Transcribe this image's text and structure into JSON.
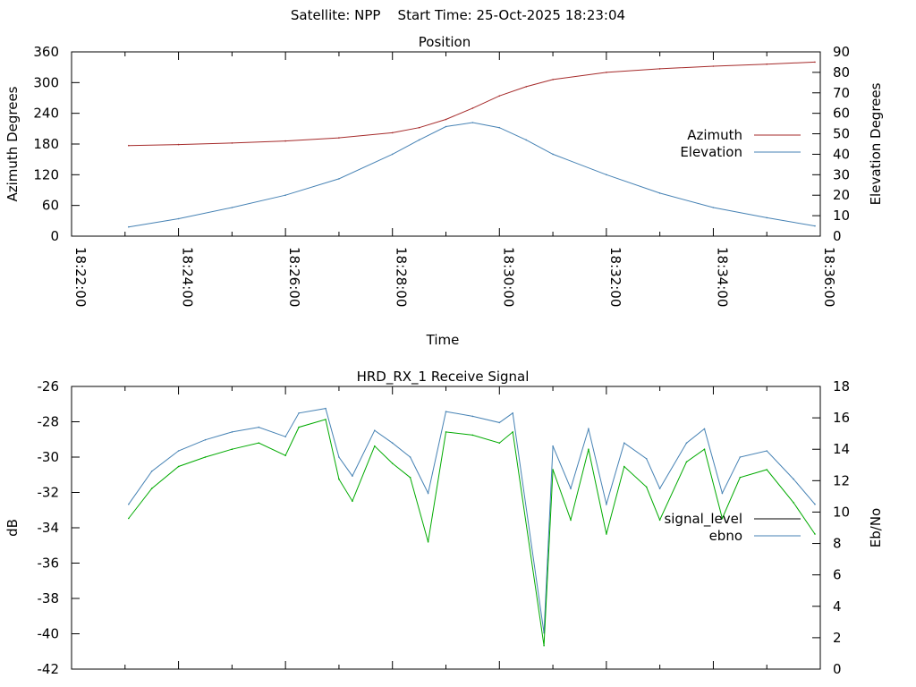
{
  "header": {
    "text": "Satellite: NPP    Start Time: 25-Oct-2025 18:23:04"
  },
  "chart_data": [
    {
      "type": "line",
      "title": "Position",
      "xlabel": "Time",
      "ylabel": "Azimuth Degrees",
      "y2label": "Elevation Degrees",
      "xlim": [
        "18:22:00",
        "18:36:00"
      ],
      "ylim": [
        0,
        360
      ],
      "y2lim": [
        0,
        90
      ],
      "x_ticks": [
        "18:22:00",
        "18:24:00",
        "18:26:00",
        "18:28:00",
        "18:30:00",
        "18:32:00",
        "18:34:00",
        "18:36:00"
      ],
      "y_ticks": [
        "0",
        "60",
        "120",
        "180",
        "240",
        "300",
        "360"
      ],
      "y2_ticks": [
        "0",
        "10",
        "20",
        "30",
        "40",
        "50",
        "60",
        "70",
        "80",
        "90"
      ],
      "legend_position": "right",
      "grid": false,
      "series": [
        {
          "name": "Azimuth",
          "axis": "y",
          "color": "#a52a2a",
          "x": [
            "18:23:04",
            "18:24:00",
            "18:25:00",
            "18:26:00",
            "18:27:00",
            "18:28:00",
            "18:28:30",
            "18:29:00",
            "18:29:30",
            "18:30:00",
            "18:30:30",
            "18:31:00",
            "18:32:00",
            "18:33:00",
            "18:34:00",
            "18:35:00",
            "18:35:54"
          ],
          "values": [
            177,
            179,
            182,
            186,
            192,
            202,
            212,
            228,
            250,
            274,
            292,
            306,
            320,
            327,
            332,
            336,
            340
          ]
        },
        {
          "name": "Elevation",
          "axis": "y2",
          "color": "#4682b4",
          "x": [
            "18:23:04",
            "18:24:00",
            "18:25:00",
            "18:26:00",
            "18:27:00",
            "18:28:00",
            "18:28:30",
            "18:29:00",
            "18:29:30",
            "18:30:00",
            "18:30:30",
            "18:31:00",
            "18:32:00",
            "18:33:00",
            "18:34:00",
            "18:35:00",
            "18:35:54"
          ],
          "values": [
            4.5,
            8.5,
            14,
            20,
            28,
            40,
            47,
            53.5,
            55.5,
            53,
            47,
            40,
            30,
            21,
            14,
            9,
            5
          ]
        }
      ]
    },
    {
      "type": "line",
      "title": "HRD_RX_1 Receive Signal",
      "xlabel": "",
      "ylabel": "dB",
      "y2label": "Eb/No",
      "xlim": [
        "18:22:00",
        "18:36:00"
      ],
      "ylim": [
        -42,
        -26
      ],
      "y2lim": [
        0,
        18
      ],
      "y_ticks": [
        "-26",
        "-28",
        "-30",
        "-32",
        "-34",
        "-36",
        "-38",
        "-40",
        "-42"
      ],
      "y2_ticks": [
        "0",
        "2",
        "4",
        "6",
        "8",
        "10",
        "12",
        "14",
        "16",
        "18"
      ],
      "legend_position": "right",
      "grid": false,
      "series": [
        {
          "name": "signal_level",
          "axis": "y",
          "color": "#000000",
          "x": [],
          "values": []
        },
        {
          "name": "ebno",
          "axis": "y2",
          "color": "#4682b4",
          "x": [
            "18:23:04",
            "18:23:30",
            "18:24:00",
            "18:24:30",
            "18:25:00",
            "18:25:30",
            "18:26:00",
            "18:26:15",
            "18:26:45",
            "18:27:00",
            "18:27:15",
            "18:27:40",
            "18:28:00",
            "18:28:20",
            "18:28:40",
            "18:29:00",
            "18:29:30",
            "18:30:00",
            "18:30:15",
            "18:30:50",
            "18:31:00",
            "18:31:20",
            "18:31:40",
            "18:32:00",
            "18:32:20",
            "18:32:45",
            "18:33:00",
            "18:33:30",
            "18:33:50",
            "18:34:10",
            "18:34:30",
            "18:35:00",
            "18:35:30",
            "18:35:54"
          ],
          "values": [
            10.5,
            12.6,
            13.9,
            14.6,
            15.1,
            15.4,
            14.8,
            16.3,
            16.6,
            13.5,
            12.3,
            15.2,
            14.4,
            13.5,
            11.2,
            16.4,
            16.1,
            15.7,
            16.3,
            2.3,
            14.2,
            11.5,
            15.3,
            10.5,
            14.4,
            13.4,
            11.5,
            14.4,
            15.3,
            11.2,
            13.5,
            13.9,
            12.1,
            10.5
          ]
        },
        {
          "name": "",
          "axis": "y2",
          "color": "#00aa00",
          "x": [
            "18:23:04",
            "18:23:30",
            "18:24:00",
            "18:24:30",
            "18:25:00",
            "18:25:30",
            "18:26:00",
            "18:26:15",
            "18:26:45",
            "18:27:00",
            "18:27:15",
            "18:27:40",
            "18:28:00",
            "18:28:20",
            "18:28:40",
            "18:29:00",
            "18:29:30",
            "18:30:00",
            "18:30:15",
            "18:30:50",
            "18:31:00",
            "18:31:20",
            "18:31:40",
            "18:32:00",
            "18:32:20",
            "18:32:45",
            "18:33:00",
            "18:33:30",
            "18:33:50",
            "18:34:10",
            "18:34:30",
            "18:35:00",
            "18:35:30",
            "18:35:54"
          ],
          "values": [
            9.6,
            11.5,
            12.9,
            13.5,
            14.0,
            14.4,
            13.6,
            15.4,
            15.9,
            12.1,
            10.7,
            14.2,
            13.1,
            12.2,
            8.1,
            15.1,
            14.9,
            14.4,
            15.1,
            1.5,
            12.7,
            9.5,
            14.0,
            8.6,
            12.9,
            11.6,
            9.5,
            13.2,
            14.0,
            9.6,
            12.2,
            12.7,
            10.6,
            8.6
          ]
        }
      ]
    }
  ]
}
